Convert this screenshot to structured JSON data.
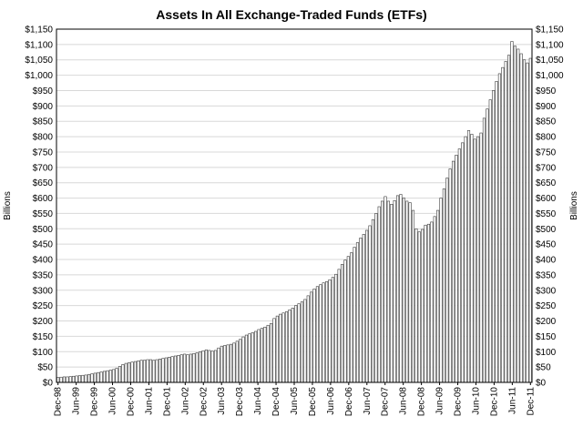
{
  "chart_data": {
    "type": "bar",
    "title": "Assets In All Exchange-Traded Funds (ETFs)",
    "ylabel_left": "Billions",
    "ylabel_right": "Billions",
    "ylim": [
      0,
      1150
    ],
    "grid": "horizontal",
    "y_ticks": [
      "$0",
      "$50",
      "$100",
      "$150",
      "$200",
      "$250",
      "$300",
      "$350",
      "$400",
      "$450",
      "$500",
      "$550",
      "$600",
      "$650",
      "$700",
      "$750",
      "$800",
      "$850",
      "$900",
      "$950",
      "$1,000",
      "$1,050",
      "$1,100",
      "$1,150"
    ],
    "x_ticks": [
      "Dec-98",
      "Jun-99",
      "Dec-99",
      "Jun-00",
      "Dec-00",
      "Jun-01",
      "Dec-01",
      "Jun-02",
      "Dec-02",
      "Jun-03",
      "Dec-03",
      "Jun-04",
      "Dec-04",
      "Jun-05",
      "Dec-05",
      "Jun-06",
      "Dec-06",
      "Jun-07",
      "Dec-07",
      "Jun-08",
      "Dec-08",
      "Jun-09",
      "Dec-09",
      "Jun-10",
      "Dec-10",
      "Jun-11",
      "Dec-11"
    ],
    "series": [
      {
        "values": [
          16,
          17,
          18,
          18,
          19,
          20,
          21,
          22,
          23,
          24,
          26,
          28,
          30,
          32,
          34,
          36,
          38,
          40,
          42,
          46,
          52,
          58,
          62,
          64,
          66,
          68,
          70,
          72,
          72,
          74,
          74,
          72,
          74,
          76,
          78,
          80,
          82,
          84,
          86,
          88,
          90,
          92,
          90,
          92,
          94,
          96,
          100,
          103,
          106,
          104,
          102,
          104,
          112,
          118,
          120,
          122,
          124,
          128,
          134,
          140,
          148,
          154,
          158,
          162,
          166,
          172,
          176,
          180,
          186,
          192,
          208,
          216,
          222,
          226,
          230,
          236,
          242,
          250,
          256,
          262,
          270,
          282,
          294,
          304,
          312,
          318,
          324,
          328,
          334,
          342,
          352,
          368,
          384,
          398,
          410,
          422,
          440,
          455,
          470,
          482,
          495,
          510,
          530,
          550,
          572,
          590,
          605,
          590,
          580,
          592,
          608,
          612,
          600,
          590,
          585,
          560,
          500,
          490,
          498,
          512,
          515,
          522,
          540,
          560,
          600,
          630,
          665,
          695,
          720,
          740,
          760,
          780,
          800,
          820,
          808,
          792,
          800,
          812,
          860,
          890,
          920,
          950,
          980,
          1005,
          1025,
          1045,
          1065,
          1110,
          1095,
          1085,
          1070,
          1050,
          1040,
          1055
        ]
      }
    ]
  }
}
